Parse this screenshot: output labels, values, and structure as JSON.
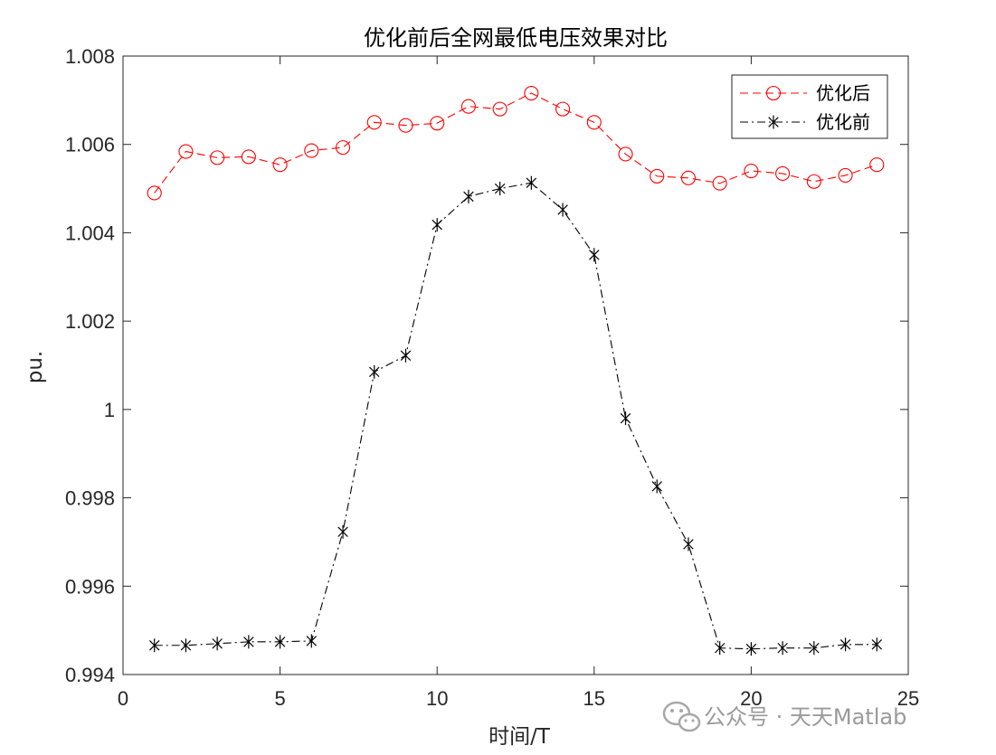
{
  "chart_data": {
    "type": "line",
    "title": "优化前后全网最低电压效果对比",
    "xlabel": "时间/T",
    "ylabel": "pu.",
    "xlim": [
      0,
      25
    ],
    "ylim": [
      0.994,
      1.008
    ],
    "xticks": [
      0,
      5,
      10,
      15,
      20,
      25
    ],
    "xtick_labels": [
      "0",
      "5",
      "10",
      "15",
      "20",
      "25"
    ],
    "yticks": [
      0.994,
      0.996,
      0.998,
      1.0,
      1.002,
      1.004,
      1.006,
      1.008
    ],
    "ytick_labels": [
      "0.994",
      "0.996",
      "0.998",
      "1",
      "1.002",
      "1.004",
      "1.006",
      "1.008"
    ],
    "grid": false,
    "legend_position": "top-right",
    "x": [
      1,
      2,
      3,
      4,
      5,
      6,
      7,
      8,
      9,
      10,
      11,
      12,
      13,
      14,
      15,
      16,
      17,
      18,
      19,
      20,
      21,
      22,
      23,
      24
    ],
    "series": [
      {
        "name": "优化后",
        "color": "#ff0000",
        "line_style": "dashed",
        "marker": "circle",
        "values": [
          1.0049,
          1.00584,
          1.0057,
          1.00572,
          1.00554,
          1.00586,
          1.00593,
          1.0065,
          1.00643,
          1.00648,
          1.00686,
          1.0068,
          1.00716,
          1.0068,
          1.0065,
          1.00578,
          1.00528,
          1.00524,
          1.00512,
          1.0054,
          1.00534,
          1.00516,
          1.0053,
          1.00554
        ]
      },
      {
        "name": "优化前",
        "color": "#000000",
        "line_style": "dash-dot",
        "marker": "asterisk",
        "values": [
          0.99466,
          0.99466,
          0.9947,
          0.99474,
          0.99474,
          0.99476,
          0.99723,
          1.00085,
          1.00122,
          1.00418,
          1.00482,
          1.005,
          1.00513,
          1.00452,
          1.0035,
          0.9998,
          0.99826,
          0.99695,
          0.9946,
          0.99458,
          0.9946,
          0.9946,
          0.99468,
          0.99468
        ]
      }
    ]
  },
  "watermark": {
    "text": "公众号 · 天天Matlab",
    "icon": "wechat-icon"
  }
}
